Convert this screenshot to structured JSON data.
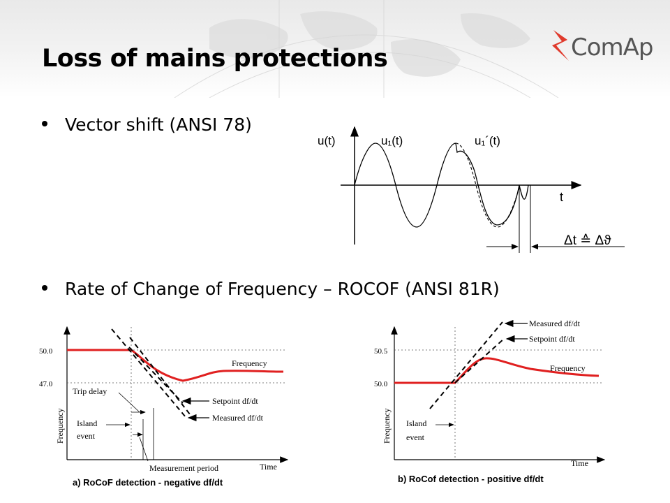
{
  "slide": {
    "title": "Loss of mains protections",
    "logo_text": "ComAp",
    "bullets": [
      "Vector shift (ANSI 78)",
      "Rate of Change of Frequency – ROCOF (ANSI 81R)"
    ]
  },
  "vector_shift": {
    "label_u": "u(t)",
    "label_u1": "u₁(t)",
    "label_u1p": "u₁´(t)",
    "label_t": "t",
    "label_delta": "Δt ≙ Δϑ"
  },
  "rocof_negative": {
    "y_ticks": [
      "50.0",
      "47.0"
    ],
    "ylabel": "Frequency",
    "xlabel": "Time",
    "frequency_label": "Frequency",
    "setpoint_label": "Setpoint df/dt",
    "measured_label": "Measured df/dt",
    "trip_delay_label": "Trip delay",
    "island_label_1": "Island",
    "island_label_2": "event",
    "measurement_label": "Measurement period",
    "caption": "a)  RoCoF detection - negative df/dt"
  },
  "rocof_positive": {
    "y_ticks": [
      "50.5",
      "50.0"
    ],
    "ylabel": "Frequency",
    "xlabel": "Time",
    "frequency_label": "Frequency",
    "setpoint_label": "Setpoint df/dt",
    "measured_label": "Measured df/dt",
    "island_label_1": "Island",
    "island_label_2": "event",
    "caption": "b)  RoCof detection - positive df/dt"
  },
  "colors": {
    "frequency_curve": "#e02020",
    "logo_red": "#e03a2c",
    "logo_text": "#555555"
  }
}
